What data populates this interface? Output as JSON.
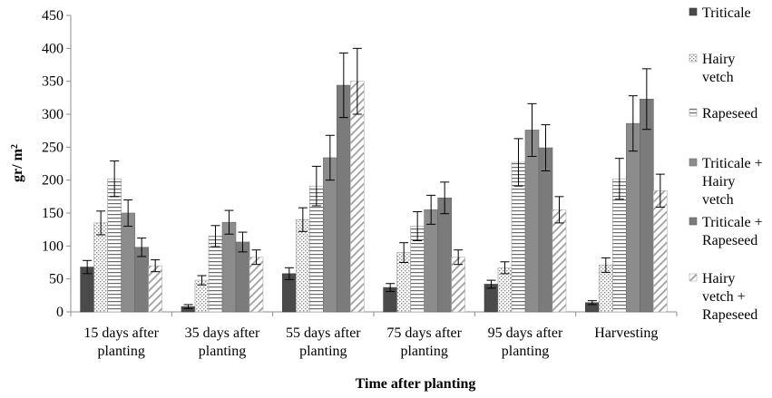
{
  "chart_data": {
    "type": "bar",
    "title": "",
    "xlabel": "Time after planting",
    "ylabel_main": "gr/ m",
    "ylabel_sup": "2",
    "ylim": [
      0,
      450
    ],
    "yticks": [
      0,
      50,
      100,
      150,
      200,
      250,
      300,
      350,
      400,
      450
    ],
    "grid": false,
    "legend_position": "right",
    "categories": [
      [
        "15 days after",
        "planting"
      ],
      [
        "35 days after",
        "planting"
      ],
      [
        "55 days after",
        "planting"
      ],
      [
        "75 days after",
        "planting"
      ],
      [
        "95 days after",
        "planting"
      ],
      [
        "Harvesting"
      ]
    ],
    "series": [
      {
        "name": "Triticale",
        "legend_lines": [
          "Triticale"
        ],
        "pattern": "solid-dark",
        "values": [
          68,
          8,
          58,
          37,
          42,
          14
        ],
        "errors": [
          10,
          3,
          9,
          6,
          6,
          3
        ]
      },
      {
        "name": "Hairy vetch",
        "legend_lines": [
          "Hairy",
          "vetch"
        ],
        "pattern": "dots",
        "values": [
          135,
          48,
          140,
          90,
          67,
          71
        ],
        "errors": [
          18,
          7,
          18,
          15,
          9,
          11
        ]
      },
      {
        "name": "Rapeseed",
        "legend_lines": [
          "Rapeseed"
        ],
        "pattern": "hlines",
        "values": [
          202,
          115,
          191,
          130,
          227,
          202
        ],
        "errors": [
          27,
          16,
          30,
          22,
          36,
          31
        ]
      },
      {
        "name": "Triticale + Hairy vetch",
        "legend_lines": [
          "Triticale +",
          "Hairy",
          "vetch"
        ],
        "pattern": "solid-mid",
        "values": [
          150,
          136,
          234,
          155,
          276,
          286
        ],
        "errors": [
          20,
          18,
          34,
          22,
          40,
          42
        ]
      },
      {
        "name": "Triticale + Rapeseed",
        "legend_lines": [
          "Triticale +",
          "Rapeseed"
        ],
        "pattern": "solid-mid2",
        "values": [
          98,
          106,
          344,
          173,
          249,
          323
        ],
        "errors": [
          14,
          15,
          49,
          24,
          35,
          46
        ]
      },
      {
        "name": "Hairy vetch + Rapeseed",
        "legend_lines": [
          "Hairy",
          "vetch +",
          "Rapeseed"
        ],
        "pattern": "diag",
        "values": [
          70,
          83,
          350,
          83,
          155,
          184
        ],
        "errors": [
          9,
          11,
          50,
          11,
          20,
          25
        ]
      }
    ]
  }
}
